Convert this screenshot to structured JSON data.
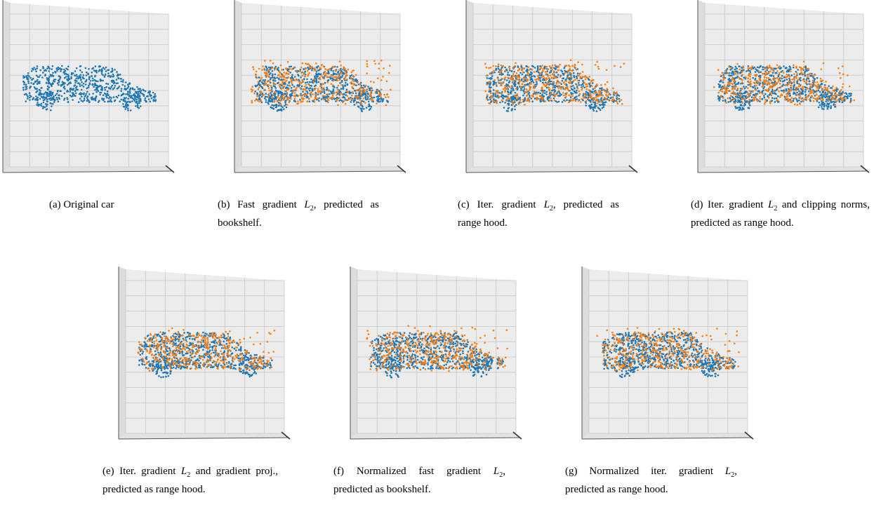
{
  "figure": {
    "colors": {
      "original": "#1f77b4",
      "perturbed": "#ff7f0e",
      "pane": "#ececec",
      "grid": "#c8c8c8"
    },
    "panels": [
      {
        "id": "a",
        "label": "(a)",
        "caption_pre": "Original car",
        "math": "",
        "caption_post": "",
        "show_perturbed": false,
        "noise": 0
      },
      {
        "id": "b",
        "label": "(b)",
        "caption_pre": "Fast gradient ",
        "math": "L2",
        "caption_post": ", predicted as bookshelf.",
        "show_perturbed": true,
        "noise": 1.0
      },
      {
        "id": "c",
        "label": "(c)",
        "caption_pre": "Iter. gradient ",
        "math": "L2",
        "caption_post": ", predicted as range hood.",
        "show_perturbed": true,
        "noise": 0.9
      },
      {
        "id": "d",
        "label": "(d)",
        "caption_pre": "Iter. gradient ",
        "math": "L2",
        "caption_post": " and clipping norms, predicted as range hood.",
        "show_perturbed": true,
        "noise": 0.5
      },
      {
        "id": "e",
        "label": "(e)",
        "caption_pre": "Iter. gradient ",
        "math": "L2",
        "caption_post": " and gradient proj., predicted as range hood.",
        "show_perturbed": true,
        "noise": 0.4
      },
      {
        "id": "f",
        "label": "(f)",
        "caption_pre": "Normalized fast gradient ",
        "math": "L2",
        "caption_post": ", predicted as bookshelf.",
        "show_perturbed": true,
        "noise": 0.8
      },
      {
        "id": "g",
        "label": "(g)",
        "caption_pre": "Normalized iter. gradient ",
        "math": "L2",
        "caption_post": ", predicted as range hood.",
        "show_perturbed": true,
        "noise": 0.6
      }
    ]
  }
}
